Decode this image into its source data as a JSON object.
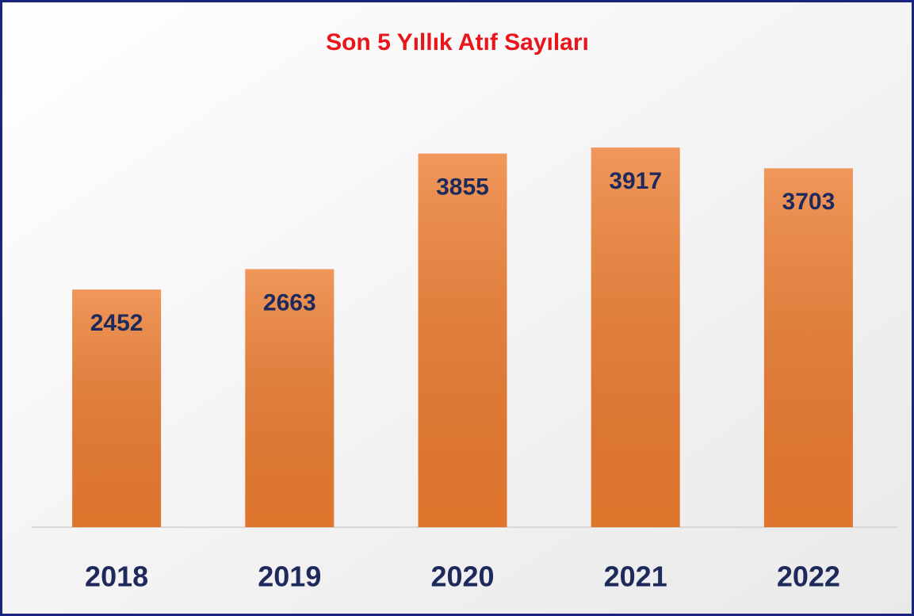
{
  "chart_data": {
    "type": "bar",
    "title": "Son 5 Yıllık Atıf Sayıları",
    "categories": [
      "2018",
      "2019",
      "2020",
      "2021",
      "2022"
    ],
    "values": [
      2452,
      2663,
      3855,
      3917,
      3703
    ],
    "color": "#ed7d31",
    "ylim": [
      0,
      4000
    ]
  }
}
